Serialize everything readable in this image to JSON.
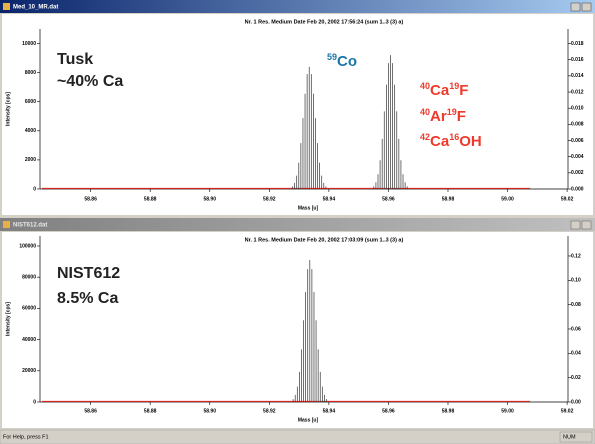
{
  "windows": [
    {
      "title": "Med_10_MR.dat"
    },
    {
      "title": "NIST612.dat"
    }
  ],
  "status": {
    "help": "For Help, press F1",
    "mode": "NUM"
  },
  "chart_data": [
    {
      "type": "stick",
      "title": "Nr. 1  Res. Medium  Date Feb 20, 2002 17:56:24  (sum 1..3 (3) a)",
      "xlabel": "Mass [u]",
      "ylabel": "Intensity [cps]",
      "baseline_color": "#e8231f",
      "sample_label": [
        "Tusk",
        "~40% Ca"
      ],
      "annotations": [
        {
          "parts": [
            "59",
            "Co"
          ],
          "color": "#1b75a8"
        },
        {
          "parts": [
            "40",
            "Ca",
            "19",
            "F"
          ],
          "color": "#ee3a2c"
        },
        {
          "parts": [
            "40",
            "Ar",
            "19",
            "F"
          ],
          "color": "#ee3a2c"
        },
        {
          "parts": [
            "42",
            "Ca",
            "16",
            "OH"
          ],
          "color": "#ee3a2c"
        }
      ],
      "xlim": [
        58.843,
        59.0203
      ],
      "xticks": [
        {
          "value": 58.86,
          "label": "58.86"
        },
        {
          "value": 58.88,
          "label": "58.88"
        },
        {
          "value": 58.9,
          "label": "58.90"
        },
        {
          "value": 58.92,
          "label": "58.92"
        },
        {
          "value": 58.94,
          "label": "58.94"
        },
        {
          "value": 58.96,
          "label": "58.96"
        },
        {
          "value": 58.98,
          "label": "58.98"
        },
        {
          "value": 59.0,
          "label": "59.00"
        },
        {
          "value": 59.02,
          "label": "59.02"
        }
      ],
      "ylim": [
        0,
        11000
      ],
      "yticks": [
        0,
        2000,
        4000,
        6000,
        8000,
        10000
      ],
      "y2lim": [
        0,
        0.0198
      ],
      "y2ticks": [
        {
          "value": 0,
          "label": "0.000"
        },
        {
          "value": 0.002,
          "label": "0.002"
        },
        {
          "value": 0.004,
          "label": "0.004"
        },
        {
          "value": 0.006,
          "label": "0.006"
        },
        {
          "value": 0.008,
          "label": "0.008"
        },
        {
          "value": 0.01,
          "label": "0.010"
        },
        {
          "value": 0.012,
          "label": "0.012"
        },
        {
          "value": 0.014,
          "label": "0.014"
        },
        {
          "value": 0.016,
          "label": "0.016"
        },
        {
          "value": 0.018,
          "label": "0.018"
        }
      ],
      "series": [
        {
          "color": "#333333",
          "x": [
            58.9278,
            58.9285,
            58.9292,
            58.9299,
            58.9306,
            58.9313,
            58.932,
            58.9327,
            58.9334,
            58.9341,
            58.9348,
            58.9355,
            58.9362,
            58.9369,
            58.9376,
            58.9383,
            58.939
          ],
          "values": [
            170,
            420,
            920,
            1810,
            3150,
            4870,
            6550,
            7900,
            8400,
            7900,
            6550,
            4870,
            3150,
            1810,
            920,
            420,
            170
          ]
        },
        {
          "color": "#333333",
          "x": [
            58.9551,
            58.9558,
            58.9565,
            58.9572,
            58.9579,
            58.9586,
            58.9593,
            58.96,
            58.9607,
            58.9614,
            58.9621,
            58.9628,
            58.9635,
            58.9642,
            58.9649,
            58.9656,
            58.9663
          ],
          "values": [
            180,
            460,
            1010,
            1980,
            3450,
            5340,
            7180,
            8650,
            9200,
            8650,
            7180,
            5340,
            3450,
            1980,
            1010,
            460,
            180
          ]
        }
      ]
    },
    {
      "type": "stick",
      "title": "Nr. 1  Res. Medium  Date Feb 20, 2002 17:03:09  (sum 1..3 (3) a)",
      "xlabel": "Mass [u]",
      "ylabel": "Intensity [cps]",
      "baseline_color": "#e8231f",
      "sample_label": [
        "NIST612",
        "8.5% Ca"
      ],
      "annotations": [],
      "xlim": [
        58.843,
        59.0203
      ],
      "xticks": [
        {
          "value": 58.86,
          "label": "58.86"
        },
        {
          "value": 58.88,
          "label": "58.88"
        },
        {
          "value": 58.9,
          "label": "58.90"
        },
        {
          "value": 58.92,
          "label": "58.92"
        },
        {
          "value": 58.94,
          "label": "58.94"
        },
        {
          "value": 58.96,
          "label": "58.96"
        },
        {
          "value": 58.98,
          "label": "58.98"
        },
        {
          "value": 59.0,
          "label": "59.00"
        },
        {
          "value": 59.02,
          "label": "59.02"
        }
      ],
      "ylim": [
        0,
        106400
      ],
      "yticks": [
        0,
        20000,
        40000,
        60000,
        80000,
        100000
      ],
      "y2lim": [
        0,
        0.1364
      ],
      "y2ticks": [
        {
          "value": 0,
          "label": "0.00"
        },
        {
          "value": 0.02,
          "label": "0.02"
        },
        {
          "value": 0.04,
          "label": "0.04"
        },
        {
          "value": 0.06,
          "label": "0.06"
        },
        {
          "value": 0.08,
          "label": "0.08"
        },
        {
          "value": 0.1,
          "label": "0.10"
        },
        {
          "value": 0.12,
          "label": "0.12"
        }
      ],
      "series": [
        {
          "color": "#333333",
          "x": [
            58.928,
            58.9287,
            58.9294,
            58.9301,
            58.9308,
            58.9315,
            58.9322,
            58.9329,
            58.9336,
            58.9343,
            58.935,
            58.9357,
            58.9364,
            58.9371,
            58.9378,
            58.9385,
            58.9392
          ],
          "values": [
            1820,
            4550,
            9830,
            19300,
            33700,
            52400,
            70500,
            85200,
            91000,
            85200,
            70500,
            52400,
            33700,
            19300,
            9830,
            4550,
            1820
          ]
        }
      ]
    }
  ]
}
